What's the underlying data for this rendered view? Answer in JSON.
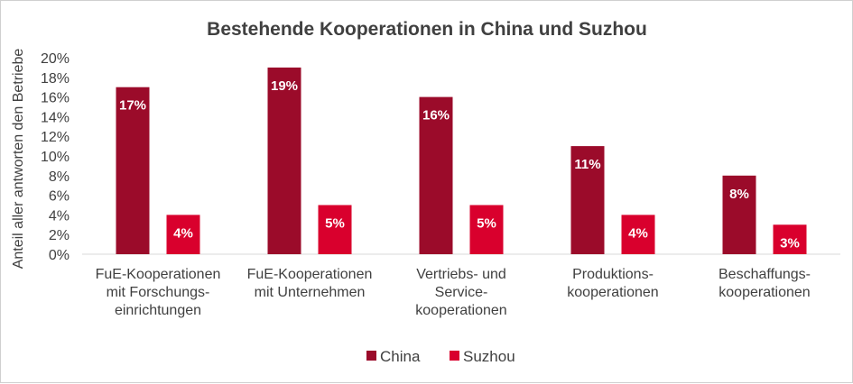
{
  "chart_data": {
    "type": "bar",
    "title": "Bestehende Kooperationen in China und Suzhou",
    "ylabel": "Anteil aller antworten den Betriebe",
    "xlabel": "",
    "ylim": [
      0,
      20
    ],
    "yticks": [
      "0%",
      "2%",
      "4%",
      "6%",
      "8%",
      "10%",
      "12%",
      "14%",
      "16%",
      "18%",
      "20%"
    ],
    "categories": [
      [
        "FuE-Kooperationen",
        "mit Forschungs-",
        "einrichtungen"
      ],
      [
        "FuE-Kooperationen",
        "mit Unternehmen"
      ],
      [
        "Vertriebs- und",
        "Service-",
        "kooperationen"
      ],
      [
        "Produktions-",
        "kooperationen"
      ],
      [
        "Beschaffungs-",
        "kooperationen"
      ]
    ],
    "series": [
      {
        "name": "China",
        "color": "#9B0B2A",
        "values": [
          17,
          19,
          16,
          11,
          8
        ],
        "labels": [
          "17%",
          "19%",
          "16%",
          "11%",
          "8%"
        ]
      },
      {
        "name": "Suzhou",
        "color": "#D9002D",
        "values": [
          4,
          5,
          5,
          4,
          3
        ],
        "labels": [
          "4%",
          "5%",
          "5%",
          "4%",
          "3%"
        ]
      }
    ],
    "legend": "bottom",
    "grid": false
  }
}
